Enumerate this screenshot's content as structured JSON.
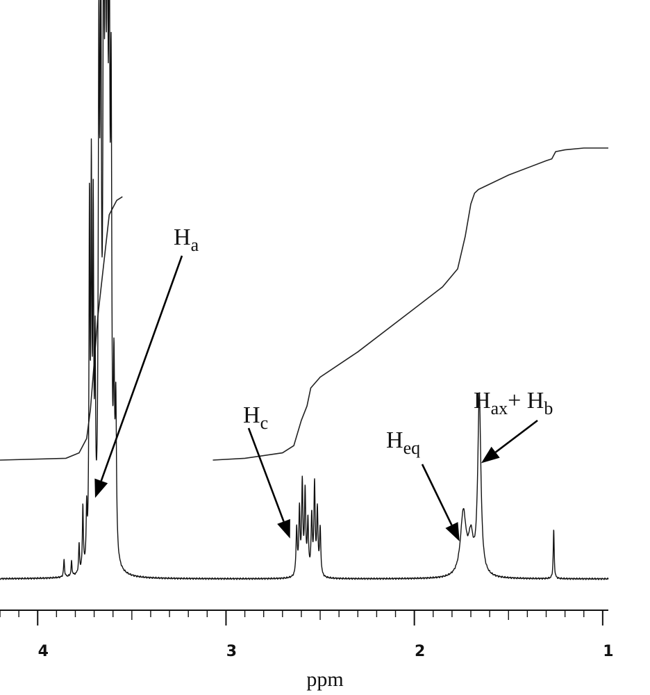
{
  "chart_data": {
    "type": "line",
    "title": "",
    "xlabel": "ppm",
    "ylabel": "",
    "x_reversed": true,
    "xlim": [
      4.2,
      0.97
    ],
    "ylim": [
      0,
      1.0
    ],
    "grid": false,
    "x_ticks": [
      {
        "value": 4,
        "label": "4"
      },
      {
        "value": 3,
        "label": "3"
      },
      {
        "value": 2,
        "label": "2"
      },
      {
        "value": 1,
        "label": "1"
      }
    ],
    "series": [
      {
        "peaks": [
          {
            "ppm": 3.86,
            "height": 0.03,
            "width": 0.003
          },
          {
            "ppm": 3.82,
            "height": 0.025,
            "width": 0.003
          },
          {
            "ppm": 3.78,
            "height": 0.05,
            "width": 0.003
          },
          {
            "ppm": 3.76,
            "height": 0.11,
            "width": 0.003
          },
          {
            "ppm": 3.74,
            "height": 0.09,
            "width": 0.003
          },
          {
            "ppm": 3.725,
            "height": 0.6,
            "width": 0.003
          },
          {
            "ppm": 3.715,
            "height": 0.63,
            "width": 0.003
          },
          {
            "ppm": 3.705,
            "height": 0.56,
            "width": 0.003
          },
          {
            "ppm": 3.695,
            "height": 0.32,
            "width": 0.003
          },
          {
            "ppm": 3.675,
            "height": 0.82,
            "width": 0.004
          },
          {
            "ppm": 3.665,
            "height": 0.9,
            "width": 0.004
          },
          {
            "ppm": 3.65,
            "height": 1.0,
            "width": 0.004
          },
          {
            "ppm": 3.64,
            "height": 1.0,
            "width": 0.004
          },
          {
            "ppm": 3.63,
            "height": 0.97,
            "width": 0.004
          },
          {
            "ppm": 3.62,
            "height": 0.9,
            "width": 0.004
          },
          {
            "ppm": 3.61,
            "height": 0.72,
            "width": 0.004
          },
          {
            "ppm": 3.595,
            "height": 0.28,
            "width": 0.004
          },
          {
            "ppm": 3.585,
            "height": 0.25,
            "width": 0.004
          },
          {
            "ppm": 2.625,
            "height": 0.08,
            "width": 0.004
          },
          {
            "ppm": 2.61,
            "height": 0.11,
            "width": 0.004
          },
          {
            "ppm": 2.595,
            "height": 0.155,
            "width": 0.004
          },
          {
            "ppm": 2.58,
            "height": 0.14,
            "width": 0.004
          },
          {
            "ppm": 2.565,
            "height": 0.09,
            "width": 0.004
          },
          {
            "ppm": 2.545,
            "height": 0.1,
            "width": 0.004
          },
          {
            "ppm": 2.53,
            "height": 0.155,
            "width": 0.004
          },
          {
            "ppm": 2.515,
            "height": 0.11,
            "width": 0.004
          },
          {
            "ppm": 2.5,
            "height": 0.08,
            "width": 0.004
          },
          {
            "ppm": 1.74,
            "height": 0.11,
            "width": 0.018
          },
          {
            "ppm": 1.7,
            "height": 0.06,
            "width": 0.015
          },
          {
            "ppm": 1.655,
            "height": 0.31,
            "width": 0.01
          },
          {
            "ppm": 1.26,
            "height": 0.085,
            "width": 0.003
          }
        ]
      },
      {
        "x": [
          4.2,
          3.85,
          3.78,
          3.74,
          3.72,
          3.68,
          3.62,
          3.58,
          3.55
        ],
        "y": [
          0.0,
          0.005,
          0.02,
          0.06,
          0.14,
          0.4,
          0.68,
          0.72,
          0.73
        ]
      },
      {
        "x": [
          3.07,
          2.9,
          2.7,
          2.64,
          2.6,
          2.57,
          2.55,
          2.5,
          2.3,
          2.0,
          1.85,
          1.77,
          1.73,
          1.7,
          1.68,
          1.66,
          1.62,
          1.5,
          1.3,
          1.27,
          1.25,
          1.2,
          1.1,
          1.0,
          0.97
        ],
        "y": [
          0.0,
          0.005,
          0.02,
          0.04,
          0.11,
          0.15,
          0.2,
          0.23,
          0.3,
          0.42,
          0.48,
          0.53,
          0.62,
          0.71,
          0.74,
          0.75,
          0.76,
          0.79,
          0.83,
          0.835,
          0.855,
          0.86,
          0.865,
          0.865,
          0.865
        ]
      }
    ],
    "annotations": [
      {
        "main": "H",
        "sub": "a",
        "arrow_to_ppm": 3.695,
        "arrow_to_y": 0.14
      },
      {
        "main": "H",
        "sub": "c",
        "arrow_to_ppm": 2.66,
        "arrow_to_y": 0.07
      },
      {
        "main": "H",
        "sub": "eq",
        "arrow_to_ppm": 1.76,
        "arrow_to_y": 0.065
      },
      {
        "main": "H",
        "sub": "ax",
        "suffix": "+ H",
        "suffix_sub": "b",
        "arrow_to_ppm": 1.645,
        "arrow_to_y": 0.2
      }
    ]
  }
}
